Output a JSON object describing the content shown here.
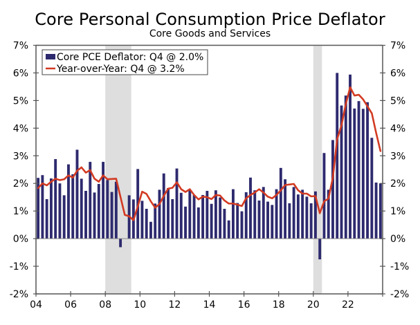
{
  "chart_data": {
    "type": "bar+line",
    "title": "Core Personal Consumption Price Deflator",
    "subtitle": "Core Goods and Services",
    "xlabel": "",
    "ylabel": "",
    "ylim": [
      -2,
      7
    ],
    "y_ticks": [
      "7%",
      "6%",
      "5%",
      "4%",
      "3%",
      "2%",
      "1%",
      "0%",
      "-1%",
      "-2%"
    ],
    "y_tick_values": [
      7,
      6,
      5,
      4,
      3,
      2,
      1,
      0,
      -1,
      -2
    ],
    "x_ticks": [
      "04",
      "06",
      "08",
      "10",
      "12",
      "14",
      "16",
      "18",
      "20",
      "22"
    ],
    "x_tick_years": [
      2004,
      2006,
      2008,
      2010,
      2012,
      2014,
      2016,
      2018,
      2020,
      2022
    ],
    "x_range": [
      "2004Q1",
      "2023Q4"
    ],
    "start_year": 2004,
    "end_year": 2024,
    "frequency": "quarterly",
    "grid": false,
    "legend_position": "top-left",
    "recessions": [
      {
        "start": "2008Q1",
        "end": "2009Q2"
      },
      {
        "start": "2020Q1",
        "end": "2020Q2"
      }
    ],
    "recession_quarters": [
      [
        16,
        21
      ],
      [
        64,
        65
      ]
    ],
    "series": [
      {
        "name": "Core PCE Deflator: Q4 @ 2.0%",
        "type": "bar",
        "color": "#2e2a6e",
        "values": [
          2.2,
          2.3,
          1.43,
          2.18,
          2.88,
          2.0,
          1.57,
          2.69,
          2.33,
          3.22,
          2.17,
          1.73,
          2.78,
          1.67,
          1.98,
          2.78,
          2.12,
          1.69,
          2.06,
          -0.31,
          0.0,
          1.57,
          1.42,
          2.52,
          1.37,
          1.08,
          0.61,
          1.27,
          1.77,
          2.36,
          1.83,
          1.43,
          2.54,
          1.66,
          1.16,
          1.75,
          1.58,
          1.13,
          1.58,
          1.73,
          1.26,
          1.75,
          1.49,
          1.08,
          0.66,
          1.79,
          1.29,
          0.99,
          1.68,
          2.21,
          1.75,
          1.38,
          1.87,
          1.34,
          1.22,
          1.79,
          2.56,
          2.15,
          1.28,
          1.87,
          1.6,
          1.77,
          1.52,
          1.28,
          1.71,
          -0.75,
          3.1,
          1.77,
          3.57,
          6.0,
          4.82,
          5.18,
          5.94,
          4.71,
          4.98,
          4.7,
          4.94,
          3.65,
          2.03,
          2.0
        ]
      },
      {
        "name": "Year-over-Year: Q4 @ 3.2%",
        "type": "line",
        "color": "#d23a22",
        "values": [
          1.83,
          2.0,
          1.93,
          2.06,
          2.17,
          2.12,
          2.15,
          2.29,
          2.21,
          2.46,
          2.58,
          2.39,
          2.48,
          2.17,
          2.06,
          2.29,
          2.15,
          2.16,
          2.17,
          1.51,
          0.86,
          0.81,
          0.67,
          1.17,
          1.7,
          1.62,
          1.35,
          1.12,
          1.25,
          1.55,
          1.81,
          1.84,
          2.04,
          1.79,
          1.69,
          1.79,
          1.58,
          1.42,
          1.52,
          1.5,
          1.43,
          1.58,
          1.56,
          1.38,
          1.27,
          1.27,
          1.23,
          1.18,
          1.46,
          1.58,
          1.67,
          1.79,
          1.67,
          1.52,
          1.46,
          1.58,
          1.75,
          1.94,
          1.96,
          1.98,
          1.75,
          1.63,
          1.63,
          1.53,
          1.54,
          0.92,
          1.35,
          1.45,
          2.2,
          3.6,
          4.1,
          4.87,
          5.48,
          5.18,
          5.21,
          5.04,
          4.79,
          4.54,
          3.83,
          3.17
        ]
      }
    ],
    "colors": {
      "bar": "#2e2a6e",
      "line": "#d23a22",
      "recession_shade": "#dedede",
      "axis": "#555555"
    }
  }
}
